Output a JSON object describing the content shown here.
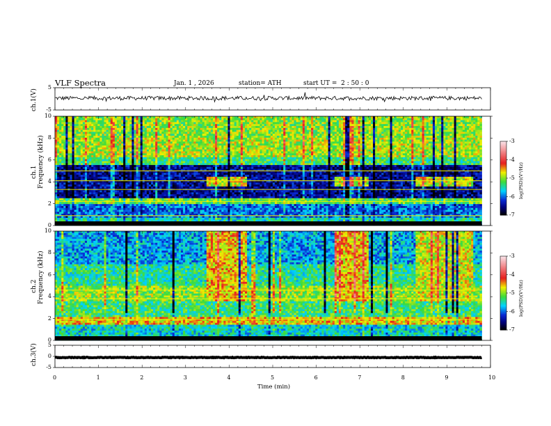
{
  "header": {
    "title": "VLF  Spectra",
    "date": "Jan.  1  , 2026",
    "station": "station= ATH",
    "start_prefix": "start  UT  =",
    "start_time": "2 : 50 : 0"
  },
  "colors": {
    "deep_blue": "#00008b",
    "blue": "#0a28d2",
    "cyan": "#00d2ff",
    "green": "#3cdc3c",
    "yellow": "#f0f000",
    "red": "#e61e1e",
    "pink": "#f0b4c8",
    "black": "#000000"
  },
  "chart_data": [
    {
      "type": "line",
      "name": "ch1-waveform",
      "ylabel": "ch.1(V)",
      "ylim": [
        -5,
        5
      ],
      "ytick_labels": [
        "5",
        "-5"
      ],
      "xlim": [
        0,
        9.8
      ],
      "baseline": 0.3,
      "amplitude": 0.9,
      "description_series": "noisy voltage trace"
    },
    {
      "type": "heatmap",
      "name": "ch1-spectrogram",
      "panel_label": "ch.1",
      "ylabel": "Frequency  (kHz)",
      "ylim": [
        0,
        10
      ],
      "ytick_labels": [
        "0",
        "2",
        "4",
        "6",
        "8",
        "10"
      ],
      "xlim": [
        0,
        9.8
      ],
      "colorbar": {
        "label": "log(PSD)(V²/Hz)",
        "range": [
          -7,
          -3
        ],
        "tick_labels": [
          "-3",
          "-4",
          "-5",
          "-6",
          "-7"
        ]
      },
      "bands": [
        {
          "range": [
            8.0,
            10.0
          ],
          "level": -5.0
        },
        {
          "range": [
            6.2,
            8.0
          ],
          "level": -4.9
        },
        {
          "range": [
            5.6,
            6.2
          ],
          "level": -5.3
        },
        {
          "range": [
            2.5,
            5.6
          ],
          "level": -6.5
        },
        {
          "range": [
            2.0,
            2.5
          ],
          "level": -5.1
        },
        {
          "range": [
            0.8,
            2.0
          ],
          "level": -6.0
        },
        {
          "range": [
            0.0,
            0.8
          ],
          "level": -5.5
        }
      ],
      "enhanced_bursts": [
        {
          "t_start": 3.5,
          "t_end": 4.4,
          "f_range": [
            3.5,
            4.5
          ],
          "level": -4.8
        },
        {
          "t_start": 6.4,
          "t_end": 7.2,
          "f_range": [
            3.5,
            4.5
          ],
          "level": -4.8
        },
        {
          "t_start": 8.3,
          "t_end": 9.6,
          "f_range": [
            3.5,
            4.5
          ],
          "level": -4.8
        }
      ],
      "tone_lines_khz": [
        0.9,
        2.2,
        3.3,
        4.1,
        5.0
      ]
    },
    {
      "type": "heatmap",
      "name": "ch2-spectrogram",
      "panel_label": "ch.2",
      "ylabel": "Frequency  (kHz)",
      "ylim": [
        0,
        10
      ],
      "ytick_labels": [
        "0",
        "2",
        "4",
        "6",
        "8",
        "10"
      ],
      "xlim": [
        0,
        9.8
      ],
      "colorbar": {
        "label": "log(PSD)(V²/Hz)",
        "range": [
          -7,
          -3
        ],
        "tick_labels": [
          "-3",
          "-4",
          "-5",
          "-6",
          "-7"
        ]
      },
      "bands": [
        {
          "range": [
            7.0,
            10.0
          ],
          "level": -5.8
        },
        {
          "range": [
            5.0,
            7.0
          ],
          "level": -5.4
        },
        {
          "range": [
            3.5,
            5.0
          ],
          "level": -5.0
        },
        {
          "range": [
            2.2,
            3.5
          ],
          "level": -5.3
        },
        {
          "range": [
            1.5,
            2.2
          ],
          "level": -4.6
        },
        {
          "range": [
            0.0,
            1.5
          ],
          "level": -5.6
        }
      ],
      "enhanced_bursts": [
        {
          "t_start": 3.5,
          "t_end": 4.4,
          "f_range": [
            3.5,
            10.0
          ],
          "level": -4.6
        },
        {
          "t_start": 6.4,
          "t_end": 7.2,
          "f_range": [
            3.5,
            10.0
          ],
          "level": -4.6
        },
        {
          "t_start": 8.3,
          "t_end": 9.6,
          "f_range": [
            3.5,
            10.0
          ],
          "level": -4.8
        }
      ],
      "tone_lines_khz": [
        1.9,
        3.8,
        4.6
      ]
    },
    {
      "type": "line",
      "name": "ch3-waveform",
      "ylabel": "ch.3(V)",
      "ylim": [
        -5,
        5
      ],
      "ytick_labels": [
        "5",
        "0",
        "-5"
      ],
      "xlim": [
        0,
        9.8
      ],
      "baseline": -0.5,
      "amplitude": 0.15
    },
    {
      "type": "axis",
      "name": "time-axis",
      "xlabel": "Time  (min)",
      "xlim": [
        0,
        10
      ],
      "xtick_labels": [
        "0",
        "1",
        "2",
        "3",
        "4",
        "5",
        "6",
        "7",
        "8",
        "9",
        "10"
      ]
    }
  ]
}
